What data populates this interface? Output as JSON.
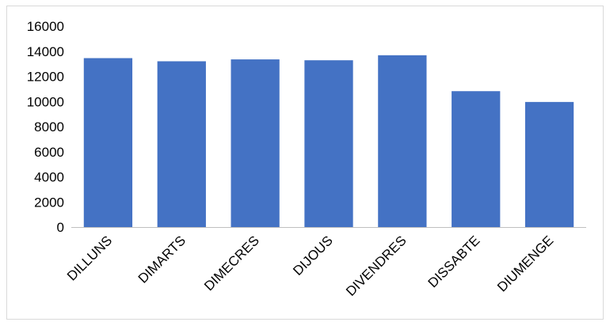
{
  "chart_data": {
    "type": "bar",
    "categories": [
      "DILLUNS",
      "DIMARTS",
      "DIMECRES",
      "DIJOUS",
      "DIVENDRES",
      "DISSABTE",
      "DIUMENGE"
    ],
    "values": [
      13450,
      13200,
      13350,
      13280,
      13680,
      10820,
      9960
    ],
    "ylim": [
      0,
      16000
    ],
    "yticks": [
      0,
      2000,
      4000,
      6000,
      8000,
      10000,
      12000,
      14000,
      16000
    ],
    "bar_color": "#4472C4",
    "grid": false,
    "legend": "none",
    "title": "",
    "xlabel": "",
    "ylabel": ""
  }
}
